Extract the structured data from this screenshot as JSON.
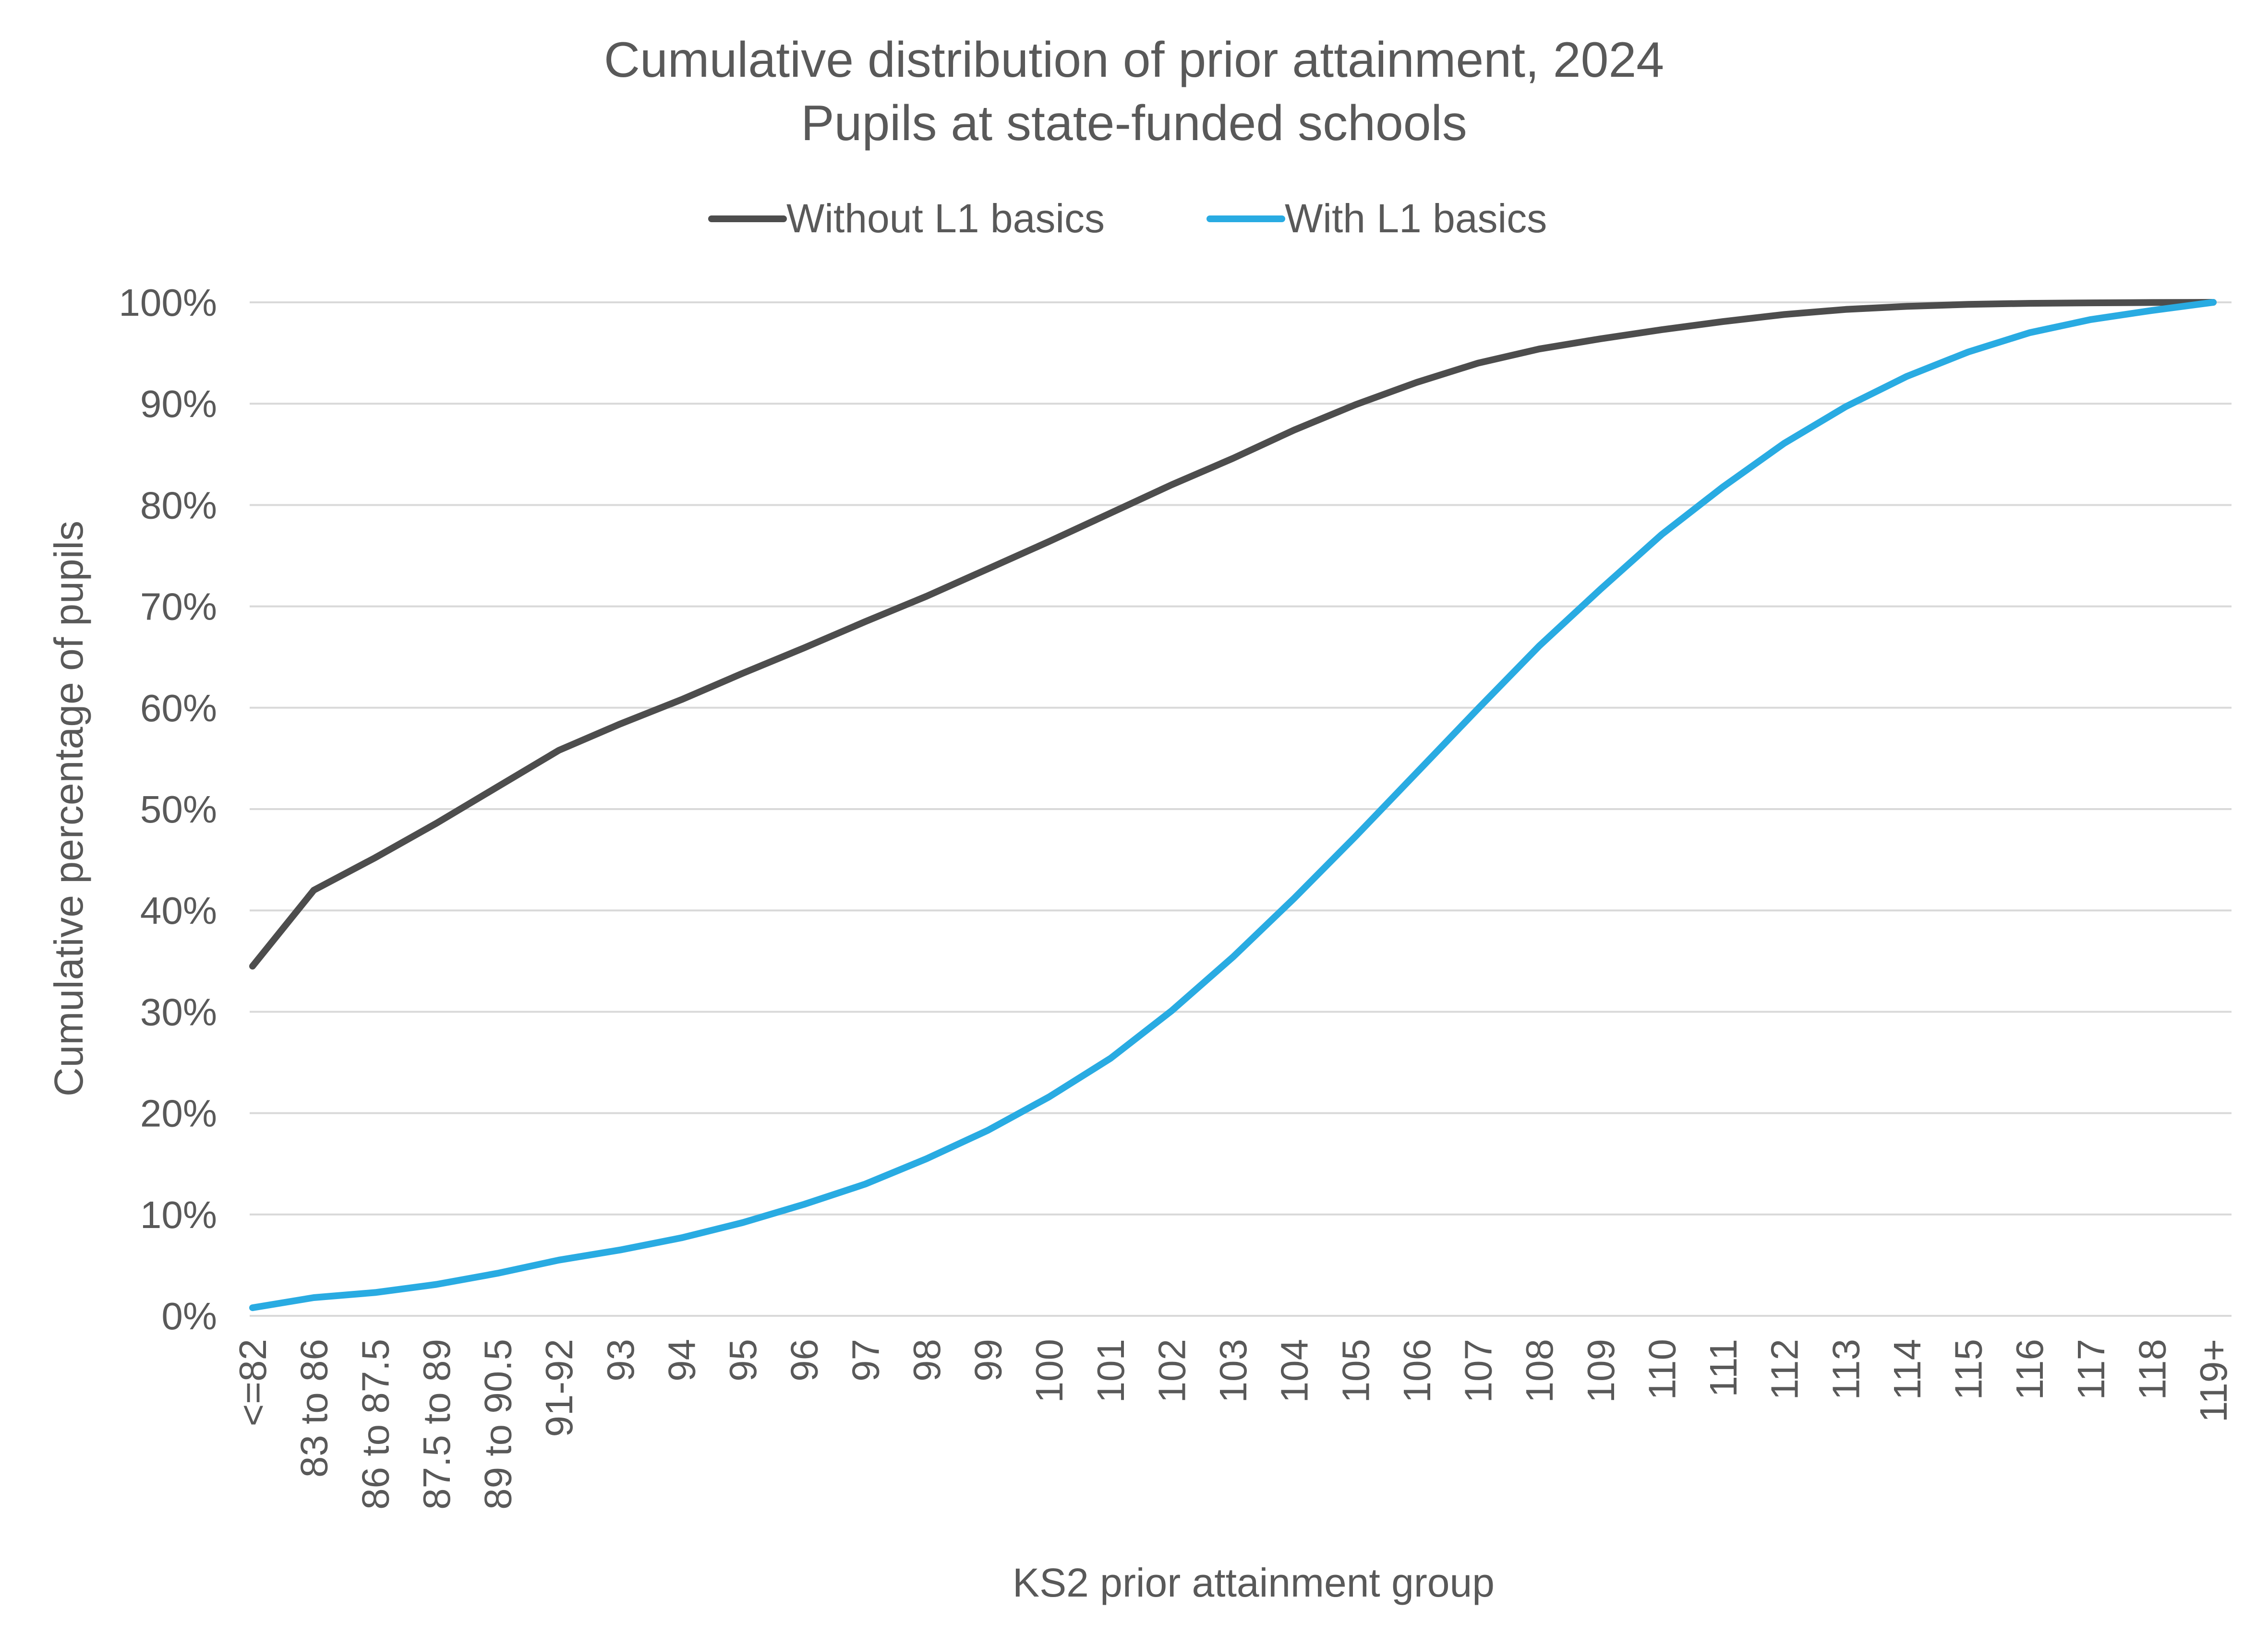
{
  "chart_data": {
    "type": "line",
    "title": "Cumulative distribution of prior attainment, 2024",
    "subtitle": "Pupils at state-funded schools",
    "xlabel": "KS2 prior attainment group",
    "ylabel": "Cumulative percentage of pupils",
    "ylim": [
      0,
      100
    ],
    "yticks": [
      "0%",
      "10%",
      "20%",
      "30%",
      "40%",
      "50%",
      "60%",
      "70%",
      "80%",
      "90%",
      "100%"
    ],
    "grid": true,
    "legend_position": "top",
    "categories": [
      "<=82",
      "83 to 86",
      "86 to 87.5",
      "87.5 to 89",
      "89 to 90.5",
      "91-92",
      "93",
      "94",
      "95",
      "96",
      "97",
      "98",
      "99",
      "100",
      "101",
      "102",
      "103",
      "104",
      "105",
      "106",
      "107",
      "108",
      "109",
      "110",
      "111",
      "112",
      "113",
      "114",
      "115",
      "116",
      "117",
      "118",
      "119+"
    ],
    "series": [
      {
        "name": "Without L1 basics",
        "color": "#4d4d4d",
        "values": [
          34.5,
          42.0,
          45.2,
          48.6,
          52.2,
          55.8,
          58.4,
          60.8,
          63.4,
          65.9,
          68.5,
          71.0,
          73.7,
          76.4,
          79.2,
          82.0,
          84.6,
          87.4,
          89.9,
          92.1,
          94.0,
          95.4,
          96.4,
          97.3,
          98.1,
          98.8,
          99.3,
          99.6,
          99.8,
          99.9,
          99.95,
          99.98,
          100.0
        ]
      },
      {
        "name": "With L1 basics",
        "color": "#29abe2",
        "values": [
          0.8,
          1.8,
          2.3,
          3.1,
          4.2,
          5.5,
          6.5,
          7.7,
          9.2,
          11.0,
          13.0,
          15.5,
          18.3,
          21.6,
          25.4,
          30.1,
          35.4,
          41.2,
          47.3,
          53.6,
          59.9,
          66.1,
          71.7,
          77.1,
          81.8,
          86.1,
          89.7,
          92.7,
          95.1,
          97.0,
          98.3,
          99.2,
          100.0
        ]
      }
    ]
  }
}
